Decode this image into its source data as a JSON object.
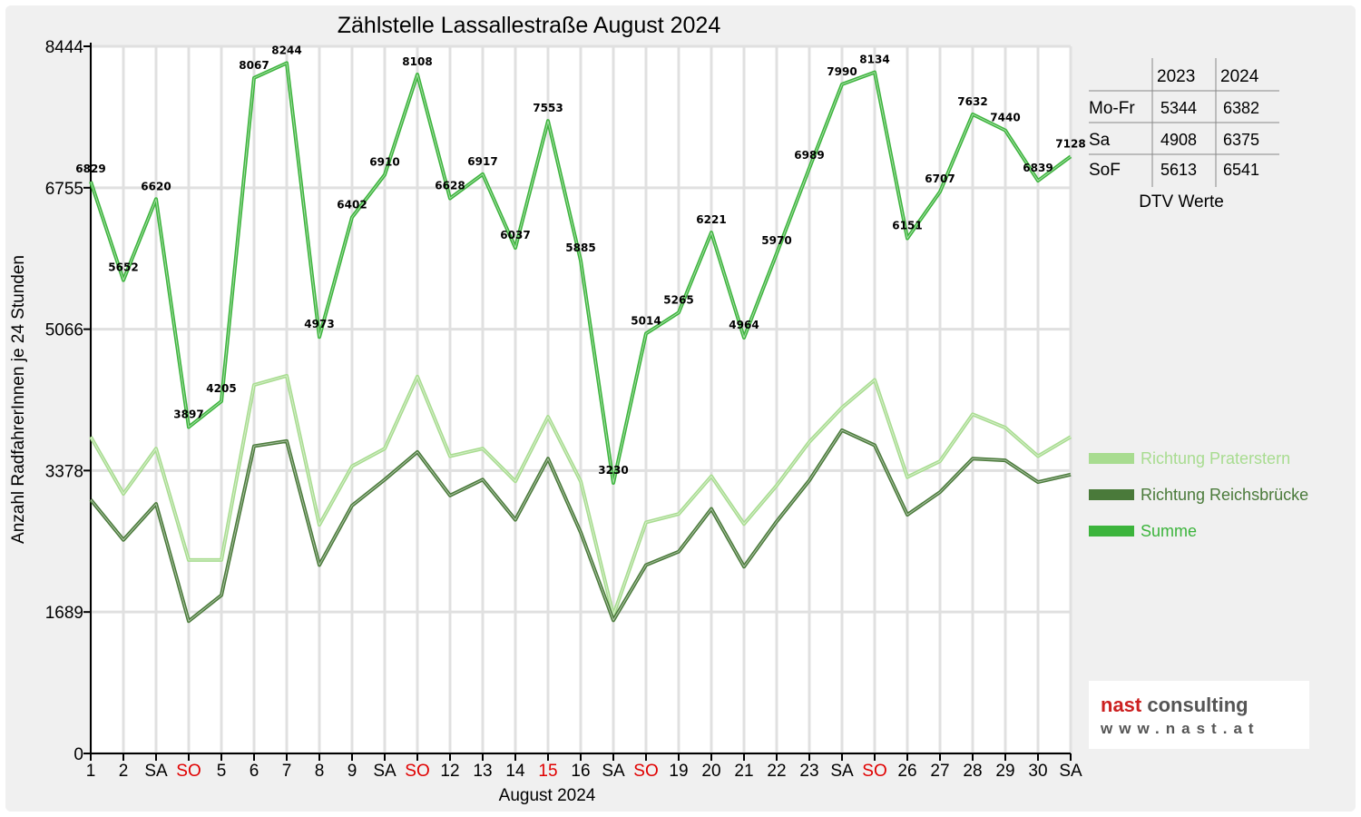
{
  "chart_data": {
    "type": "line",
    "title": "Zählstelle Lassallestraße August 2024",
    "xlabel": "August 2024",
    "ylabel": "Anzahl RadfahrerInnen je 24 Stunden",
    "ylim": [
      0,
      8444
    ],
    "yticks": [
      0,
      1689,
      3378,
      5066,
      6755,
      8444
    ],
    "grid": true,
    "legend_position": "right",
    "categories": [
      "1",
      "2",
      "SA",
      "SO",
      "5",
      "6",
      "7",
      "8",
      "9",
      "SA",
      "SO",
      "12",
      "13",
      "14",
      "15",
      "16",
      "SA",
      "SO",
      "19",
      "20",
      "21",
      "22",
      "23",
      "SA",
      "SO",
      "26",
      "27",
      "28",
      "29",
      "30",
      "SA"
    ],
    "red_categories": [
      3,
      10,
      14,
      17,
      24
    ],
    "series": [
      {
        "name": "Richtung Praterstern",
        "color": "#a8dc90",
        "values": [
          3780,
          3100,
          3640,
          2310,
          2310,
          4400,
          4510,
          2730,
          3430,
          3640,
          4500,
          3550,
          3640,
          3250,
          4020,
          3250,
          1650,
          2760,
          2860,
          3310,
          2740,
          3200,
          3720,
          4130,
          4460,
          3300,
          3490,
          4050,
          3890,
          3550,
          3780
        ]
      },
      {
        "name": "Richtung Reichsbrücke",
        "color": "#4a7a3a",
        "values": [
          3030,
          2550,
          2980,
          1580,
          1890,
          3670,
          3730,
          2250,
          2960,
          3270,
          3600,
          3080,
          3270,
          2790,
          3520,
          2640,
          1590,
          2250,
          2410,
          2920,
          2230,
          2770,
          3260,
          3860,
          3680,
          2850,
          3120,
          3520,
          3500,
          3240,
          3330
        ]
      },
      {
        "name": "Summe",
        "color": "#3cb43c",
        "values": [
          6829,
          5652,
          6620,
          3897,
          4205,
          8067,
          8244,
          4973,
          6402,
          6910,
          8108,
          6628,
          6917,
          6037,
          7553,
          5885,
          3230,
          5014,
          5265,
          6221,
          4964,
          5970,
          6989,
          7990,
          8134,
          6151,
          6707,
          7632,
          7440,
          6839,
          7128
        ]
      }
    ]
  },
  "dtv_table": {
    "headers": [
      "",
      "2023",
      "2024"
    ],
    "rows": [
      {
        "label": "Mo-Fr",
        "v2023": "5344",
        "v2024": "6382"
      },
      {
        "label": "Sa",
        "v2023": "4908",
        "v2024": "6375"
      },
      {
        "label": "SoF",
        "v2023": "5613",
        "v2024": "6541"
      }
    ],
    "caption": "DTV Werte"
  },
  "logo": {
    "brand1": "nast",
    "brand2": "consulting",
    "url": "www.nast.at",
    "brand1_color": "#cc2020",
    "brand2_color": "#555555"
  }
}
